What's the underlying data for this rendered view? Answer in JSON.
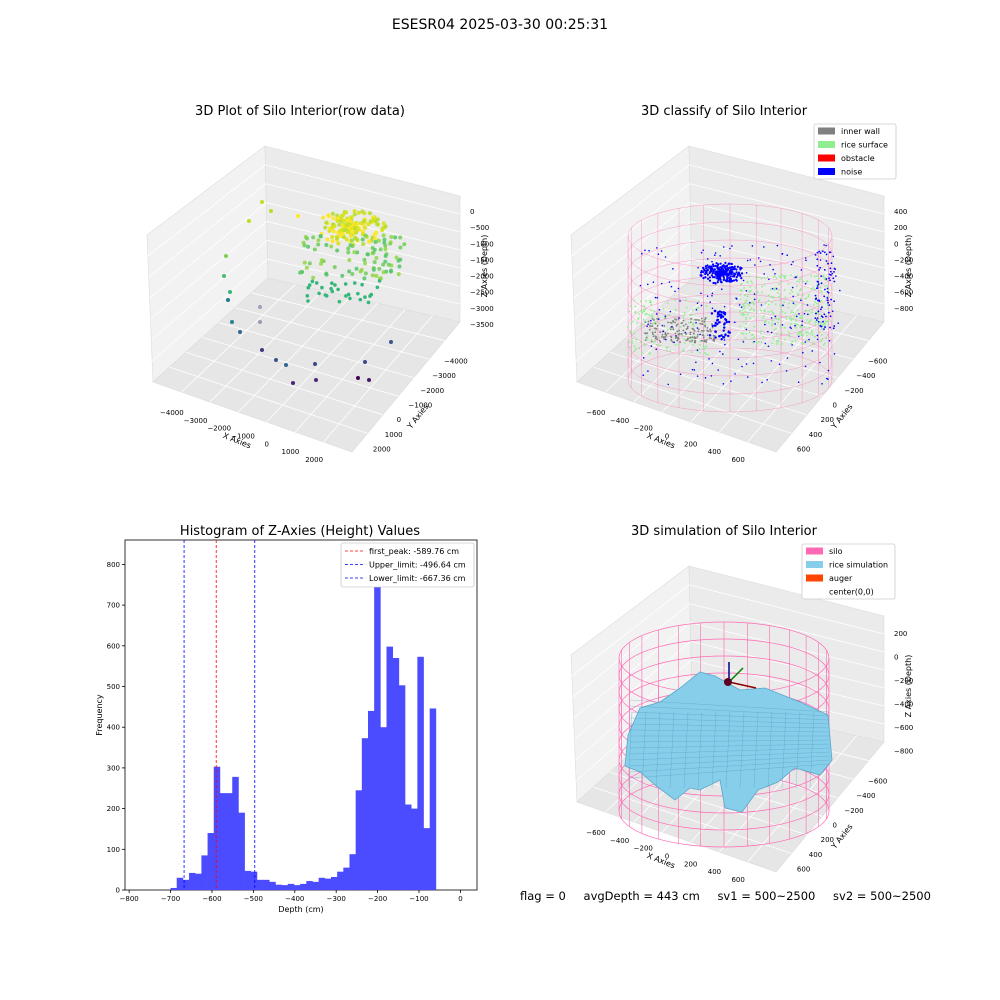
{
  "suptitle": "ESESR04 2025-03-30 00:25:31",
  "panels": {
    "raw": {
      "title": "3D Plot of Silo Interior(row data)",
      "xlabel": "X Axies",
      "ylabel": "Y Axies",
      "zlabel": "Z Axies (Depth)",
      "xticks": [
        "−4000",
        "−3000",
        "−2000",
        "−1000",
        "0",
        "1000",
        "2000"
      ],
      "yticks": [
        "2000",
        "1000",
        "0",
        "−1000",
        "−2000",
        "−3000",
        "−4000"
      ],
      "zticks": [
        "0",
        "−500",
        "−1000",
        "−1500",
        "−2000",
        "−2500",
        "−3000",
        "−3500"
      ]
    },
    "classify": {
      "title": "3D classify of Silo Interior",
      "xlabel": "X Axies",
      "ylabel": "Y Axies",
      "zlabel": "Z Axies (Depth)",
      "xticks": [
        "−600",
        "−400",
        "−200",
        "0",
        "200",
        "400",
        "600"
      ],
      "yticks": [
        "600",
        "400",
        "200",
        "0",
        "−200",
        "−400",
        "−600"
      ],
      "zticks": [
        "400",
        "200",
        "0",
        "−200",
        "−400",
        "−600",
        "−800"
      ],
      "legend": [
        {
          "label": "inner wall",
          "color": "#808080"
        },
        {
          "label": "rice surface",
          "color": "#90ee90"
        },
        {
          "label": "obstacle",
          "color": "#ff0000"
        },
        {
          "label": "noise",
          "color": "#0000ff"
        }
      ]
    },
    "simulation": {
      "title": "3D simulation of Silo Interior",
      "xlabel": "X Axies",
      "ylabel": "Y Axies",
      "zlabel": "Z Axies (Depth)",
      "xticks": [
        "−600",
        "−400",
        "−200",
        "0",
        "200",
        "400",
        "600"
      ],
      "yticks": [
        "600",
        "400",
        "200",
        "0",
        "−200",
        "−400",
        "−600"
      ],
      "zticks": [
        "200",
        "0",
        "−200",
        "−400",
        "−600",
        "−800"
      ],
      "legend": [
        {
          "label": "silo",
          "color": "#ff69b4"
        },
        {
          "label": "rice simulation",
          "color": "#87ceeb"
        },
        {
          "label": "auger",
          "color": "#ff4500"
        },
        {
          "label": "center(0,0)",
          "color": ""
        }
      ]
    }
  },
  "chart_data": {
    "type": "bar",
    "title": "Histogram of Z-Axies (Height) Values",
    "xlabel": "Depth (cm)",
    "ylabel": "Frequency",
    "xlim": [
      -810,
      40
    ],
    "ylim": [
      0,
      860
    ],
    "xticks": [
      -800,
      -700,
      -600,
      -500,
      -400,
      -300,
      -200,
      -100,
      0
    ],
    "yticks": [
      0,
      100,
      200,
      300,
      400,
      500,
      600,
      700,
      800
    ],
    "bin_width": 14.9,
    "bin_edges_start": -700,
    "bar_color": "#4b4bff",
    "values": [
      5,
      30,
      25,
      42,
      40,
      85,
      140,
      303,
      238,
      238,
      278,
      190,
      47,
      45,
      25,
      25,
      20,
      13,
      12,
      15,
      12,
      15,
      22,
      20,
      30,
      28,
      32,
      45,
      55,
      88,
      245,
      373,
      440,
      745,
      400,
      598,
      570,
      503,
      210,
      200,
      573,
      152,
      446
    ],
    "vlines": [
      {
        "label": "first_peak: -589.76 cm",
        "x": -589.76,
        "color": "#ff0000"
      },
      {
        "label": "Upper_limit: -496.64 cm",
        "x": -496.64,
        "color": "#0000ff"
      },
      {
        "label": "Lower_limit: -667.36 cm",
        "x": -667.36,
        "color": "#0000ff"
      }
    ]
  },
  "footer": {
    "flag": "flag = 0",
    "avg": "avgDepth = 443 cm",
    "sv1": "sv1 = 500~2500",
    "sv2": "sv2 = 500~2500"
  }
}
